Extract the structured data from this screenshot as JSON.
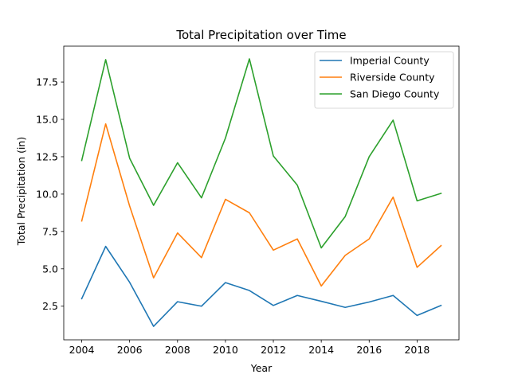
{
  "chart_data": {
    "type": "line",
    "title": "Total Precipitation over Time",
    "xlabel": "Year",
    "ylabel": "Total Precipitation (in)",
    "x": [
      2004,
      2005,
      2006,
      2007,
      2008,
      2009,
      2010,
      2011,
      2012,
      2013,
      2014,
      2015,
      2016,
      2017,
      2018,
      2019
    ],
    "xticks": [
      2004,
      2006,
      2008,
      2010,
      2012,
      2014,
      2016,
      2018
    ],
    "xtick_labels": [
      "2004",
      "2006",
      "2008",
      "2010",
      "2012",
      "2014",
      "2016",
      "2018"
    ],
    "yticks": [
      2.5,
      5.0,
      7.5,
      10.0,
      12.5,
      15.0,
      17.5
    ],
    "ytick_labels": [
      "2.5",
      "5.0",
      "7.5",
      "10.0",
      "12.5",
      "15.0",
      "17.5"
    ],
    "xlim": [
      2003.25,
      2019.75
    ],
    "ylim": [
      0.25,
      19.9
    ],
    "grid": false,
    "legend_position": "upper-right",
    "series": [
      {
        "name": "Imperial County",
        "color": "#1f77b4",
        "values": [
          3.0,
          6.5,
          4.1,
          1.15,
          2.8,
          2.5,
          4.08,
          3.55,
          2.55,
          3.22,
          2.83,
          2.42,
          2.78,
          3.22,
          1.88,
          2.55
        ]
      },
      {
        "name": "Riverside County",
        "color": "#ff7f0e",
        "values": [
          8.2,
          14.7,
          9.2,
          4.4,
          7.4,
          5.75,
          9.65,
          8.75,
          6.25,
          7.0,
          3.85,
          5.9,
          7.0,
          9.8,
          5.1,
          6.55
        ]
      },
      {
        "name": "San Diego County",
        "color": "#2ca02c",
        "values": [
          12.25,
          19.0,
          12.4,
          9.25,
          12.1,
          9.75,
          13.75,
          19.05,
          12.55,
          10.6,
          6.4,
          8.5,
          12.5,
          14.95,
          9.55,
          10.05
        ]
      }
    ]
  }
}
